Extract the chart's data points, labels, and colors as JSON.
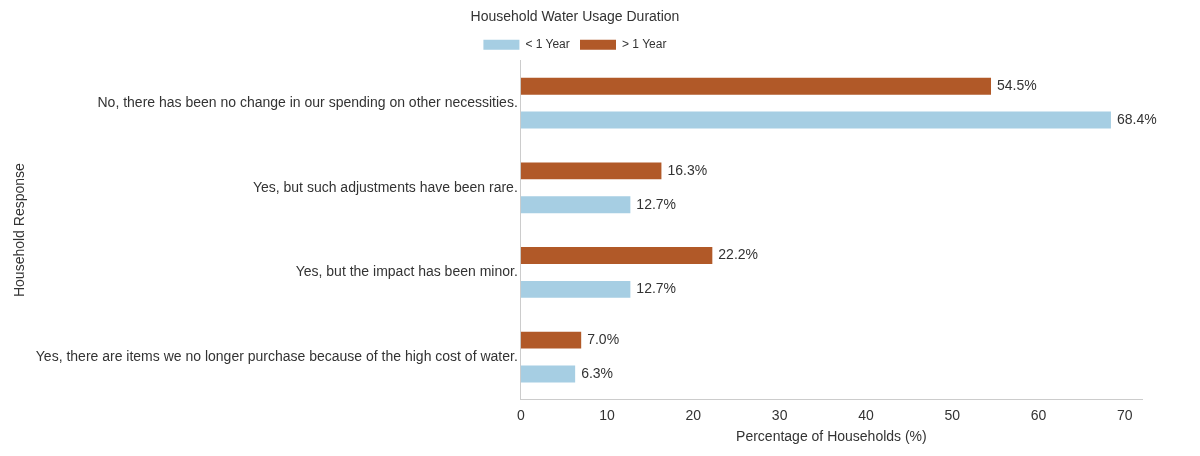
{
  "chart_data": {
    "type": "bar",
    "orientation": "horizontal",
    "legend_title": "Household Water Usage Duration",
    "xlabel": "Percentage of Households (%)",
    "ylabel": "Household Response",
    "categories": [
      "No, there has been no change in our spending on other necessities.",
      "Yes, but such adjustments have been rare.",
      "Yes, but the impact has been minor.",
      "Yes, there are items we no longer purchase because of the high cost of water."
    ],
    "series": [
      {
        "name": "< 1 Year",
        "color": "#a6cee3",
        "values": [
          68.4,
          12.7,
          12.7,
          6.3
        ],
        "value_labels": [
          "68.4%",
          "12.7%",
          "12.7%",
          "6.3%"
        ]
      },
      {
        "name": "> 1 Year",
        "color": "#b15928",
        "values": [
          54.5,
          16.3,
          22.2,
          7.0
        ],
        "value_labels": [
          "54.5%",
          "16.3%",
          "22.2%",
          "7.0%"
        ]
      }
    ],
    "xlim": [
      0,
      72
    ],
    "xticks": [
      0,
      10,
      20,
      30,
      40,
      50,
      60,
      70
    ],
    "grid": false,
    "legend": "top"
  }
}
